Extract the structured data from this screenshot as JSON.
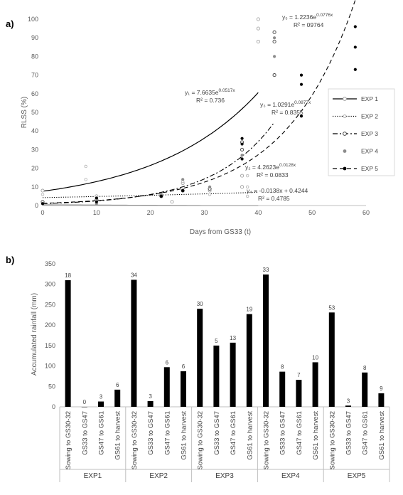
{
  "chart_data": [
    {
      "panel": "a)",
      "type": "scatter",
      "xlabel": "Days from GS33 (t)",
      "ylabel": "RLSS (%)",
      "xlim": [
        0,
        60
      ],
      "ylim": [
        0,
        100
      ],
      "xticks": [
        0,
        10,
        20,
        30,
        40,
        50,
        60
      ],
      "yticks": [
        0,
        10,
        20,
        30,
        40,
        50,
        60,
        70,
        80,
        90,
        100
      ],
      "grid": false,
      "legend_position": "right",
      "series": [
        {
          "name": "EXP 1",
          "marker": "open-circle",
          "line": "solid",
          "color": "#999999",
          "points": [
            [
              0,
              8
            ],
            [
              10,
              5
            ],
            [
              24,
              2
            ],
            [
              26,
              12
            ],
            [
              31,
              8
            ],
            [
              37,
              10
            ],
            [
              37,
              16
            ],
            [
              40,
              88
            ],
            [
              40,
              95
            ],
            [
              40,
              100
            ]
          ],
          "fit": {
            "model": "exp",
            "a": 7.6635,
            "b": 0.0517,
            "x_range": [
              0,
              40
            ]
          },
          "equation": "y₁ = 7.6635e",
          "equation_exp": "0.0517x",
          "r2": "R² = 0.736"
        },
        {
          "name": "EXP 2",
          "marker": "small-open-circle",
          "line": "dotted",
          "color": "#b0b0b0",
          "points": [
            [
              0,
              6
            ],
            [
              8,
              14
            ],
            [
              8,
              21
            ],
            [
              10,
              4
            ],
            [
              22,
              6
            ],
            [
              26,
              13
            ],
            [
              31,
              6
            ],
            [
              38,
              5
            ],
            [
              38,
              10
            ],
            [
              38,
              16
            ]
          ],
          "fit": {
            "model": "exp",
            "a": 4.2623,
            "b": 0.0128,
            "x_range": [
              0,
              40
            ]
          },
          "equation": "y₂ = 4.2623e",
          "equation_exp": "0.0128x",
          "r2": "R² = 0.0833"
        },
        {
          "name": "EXP 3",
          "marker": "open-circle-dark",
          "line": "dash-dot",
          "color": "#404040",
          "points": [
            [
              0,
              2
            ],
            [
              10,
              3
            ],
            [
              22,
              5
            ],
            [
              26,
              8
            ],
            [
              31,
              9
            ],
            [
              37,
              30
            ],
            [
              37,
              34
            ],
            [
              43,
              70
            ],
            [
              43,
              88
            ],
            [
              43,
              93
            ]
          ],
          "fit": {
            "model": "exp",
            "a": 1.0291,
            "b": 0.0877,
            "x_range": [
              0,
              43
            ]
          },
          "equation": "y₃ = 1.0291e",
          "equation_exp": "0.0877x",
          "r2": "R² = 0.8355"
        },
        {
          "name": "EXP 4",
          "marker": "filled-circle-grey",
          "line": "none",
          "color": "#8c8c8c",
          "points": [
            [
              0,
              1
            ],
            [
              10,
              1
            ],
            [
              22,
              6
            ],
            [
              26,
              14
            ],
            [
              31,
              10
            ],
            [
              37,
              27
            ],
            [
              43,
              80
            ],
            [
              43,
              90
            ]
          ],
          "fit": {
            "model": "linear",
            "m": -0.0138,
            "c": 0.4244,
            "x_range": [
              0,
              40
            ]
          },
          "equation": "y₄ = -0.0138x + 0.4244",
          "equation_exp": "",
          "r2": "R² = 0.4785"
        },
        {
          "name": "EXP 5",
          "marker": "filled-circle-black",
          "line": "dashed",
          "color": "#000000",
          "points": [
            [
              0,
              1
            ],
            [
              10,
              2
            ],
            [
              10,
              4
            ],
            [
              22,
              5
            ],
            [
              26,
              8
            ],
            [
              37,
              25
            ],
            [
              37,
              33
            ],
            [
              37,
              36
            ],
            [
              48,
              48
            ],
            [
              48,
              65
            ],
            [
              48,
              70
            ],
            [
              58,
              73
            ],
            [
              58,
              85
            ],
            [
              58,
              96
            ]
          ],
          "fit": {
            "model": "exp",
            "a": 1.2236,
            "b": 0.0776,
            "x_range": [
              0,
              58
            ]
          },
          "equation": "y₅ = 1.2236e",
          "equation_exp": "0.0776x",
          "r2": "R² = 09764"
        }
      ]
    },
    {
      "panel": "b)",
      "type": "bar",
      "ylabel": "Accumulated rainfall (mm)",
      "ylim": [
        0,
        350
      ],
      "yticks": [
        0,
        50,
        100,
        150,
        200,
        250,
        300,
        350
      ],
      "grid": false,
      "bar_color": "#000000",
      "groups": [
        {
          "name": "EXP1",
          "categories": [
            "Sowing to GS30-32",
            "GS33 to GS47",
            "GS47 to GS61",
            "GS61 to harvest"
          ],
          "values": [
            310,
            0,
            13,
            42
          ],
          "labels": [
            "18",
            "0",
            "3",
            "6"
          ]
        },
        {
          "name": "EXP2",
          "categories": [
            "Sowing to GS30-32",
            "GS33 to GS47",
            "GS47 to GS61",
            "GS61 to harvest"
          ],
          "values": [
            311,
            14,
            97,
            87
          ],
          "labels": [
            "34",
            "3",
            "6",
            "6"
          ]
        },
        {
          "name": "EXP3",
          "categories": [
            "Sowing to GS30-32",
            "GS33 to GS47",
            "GS47 to GS61",
            "GS61 to harvest"
          ],
          "values": [
            240,
            150,
            157,
            227
          ],
          "labels": [
            "30",
            "5",
            "13",
            "19"
          ]
        },
        {
          "name": "EXP4",
          "categories": [
            "Sowing to GS30-32",
            "GS33 to GS47",
            "GS47 to GS61",
            "GS61 to harvest"
          ],
          "values": [
            324,
            86,
            66,
            109
          ],
          "labels": [
            "33",
            "8",
            "7",
            "10"
          ]
        },
        {
          "name": "EXP5",
          "categories": [
            "Sowing to GS30-32",
            "GS33 to GS47",
            "GS47 to GS61",
            "GS61 to harvest"
          ],
          "values": [
            231,
            3,
            84,
            33
          ],
          "labels": [
            "53",
            "3",
            "8",
            "9"
          ]
        }
      ]
    }
  ]
}
